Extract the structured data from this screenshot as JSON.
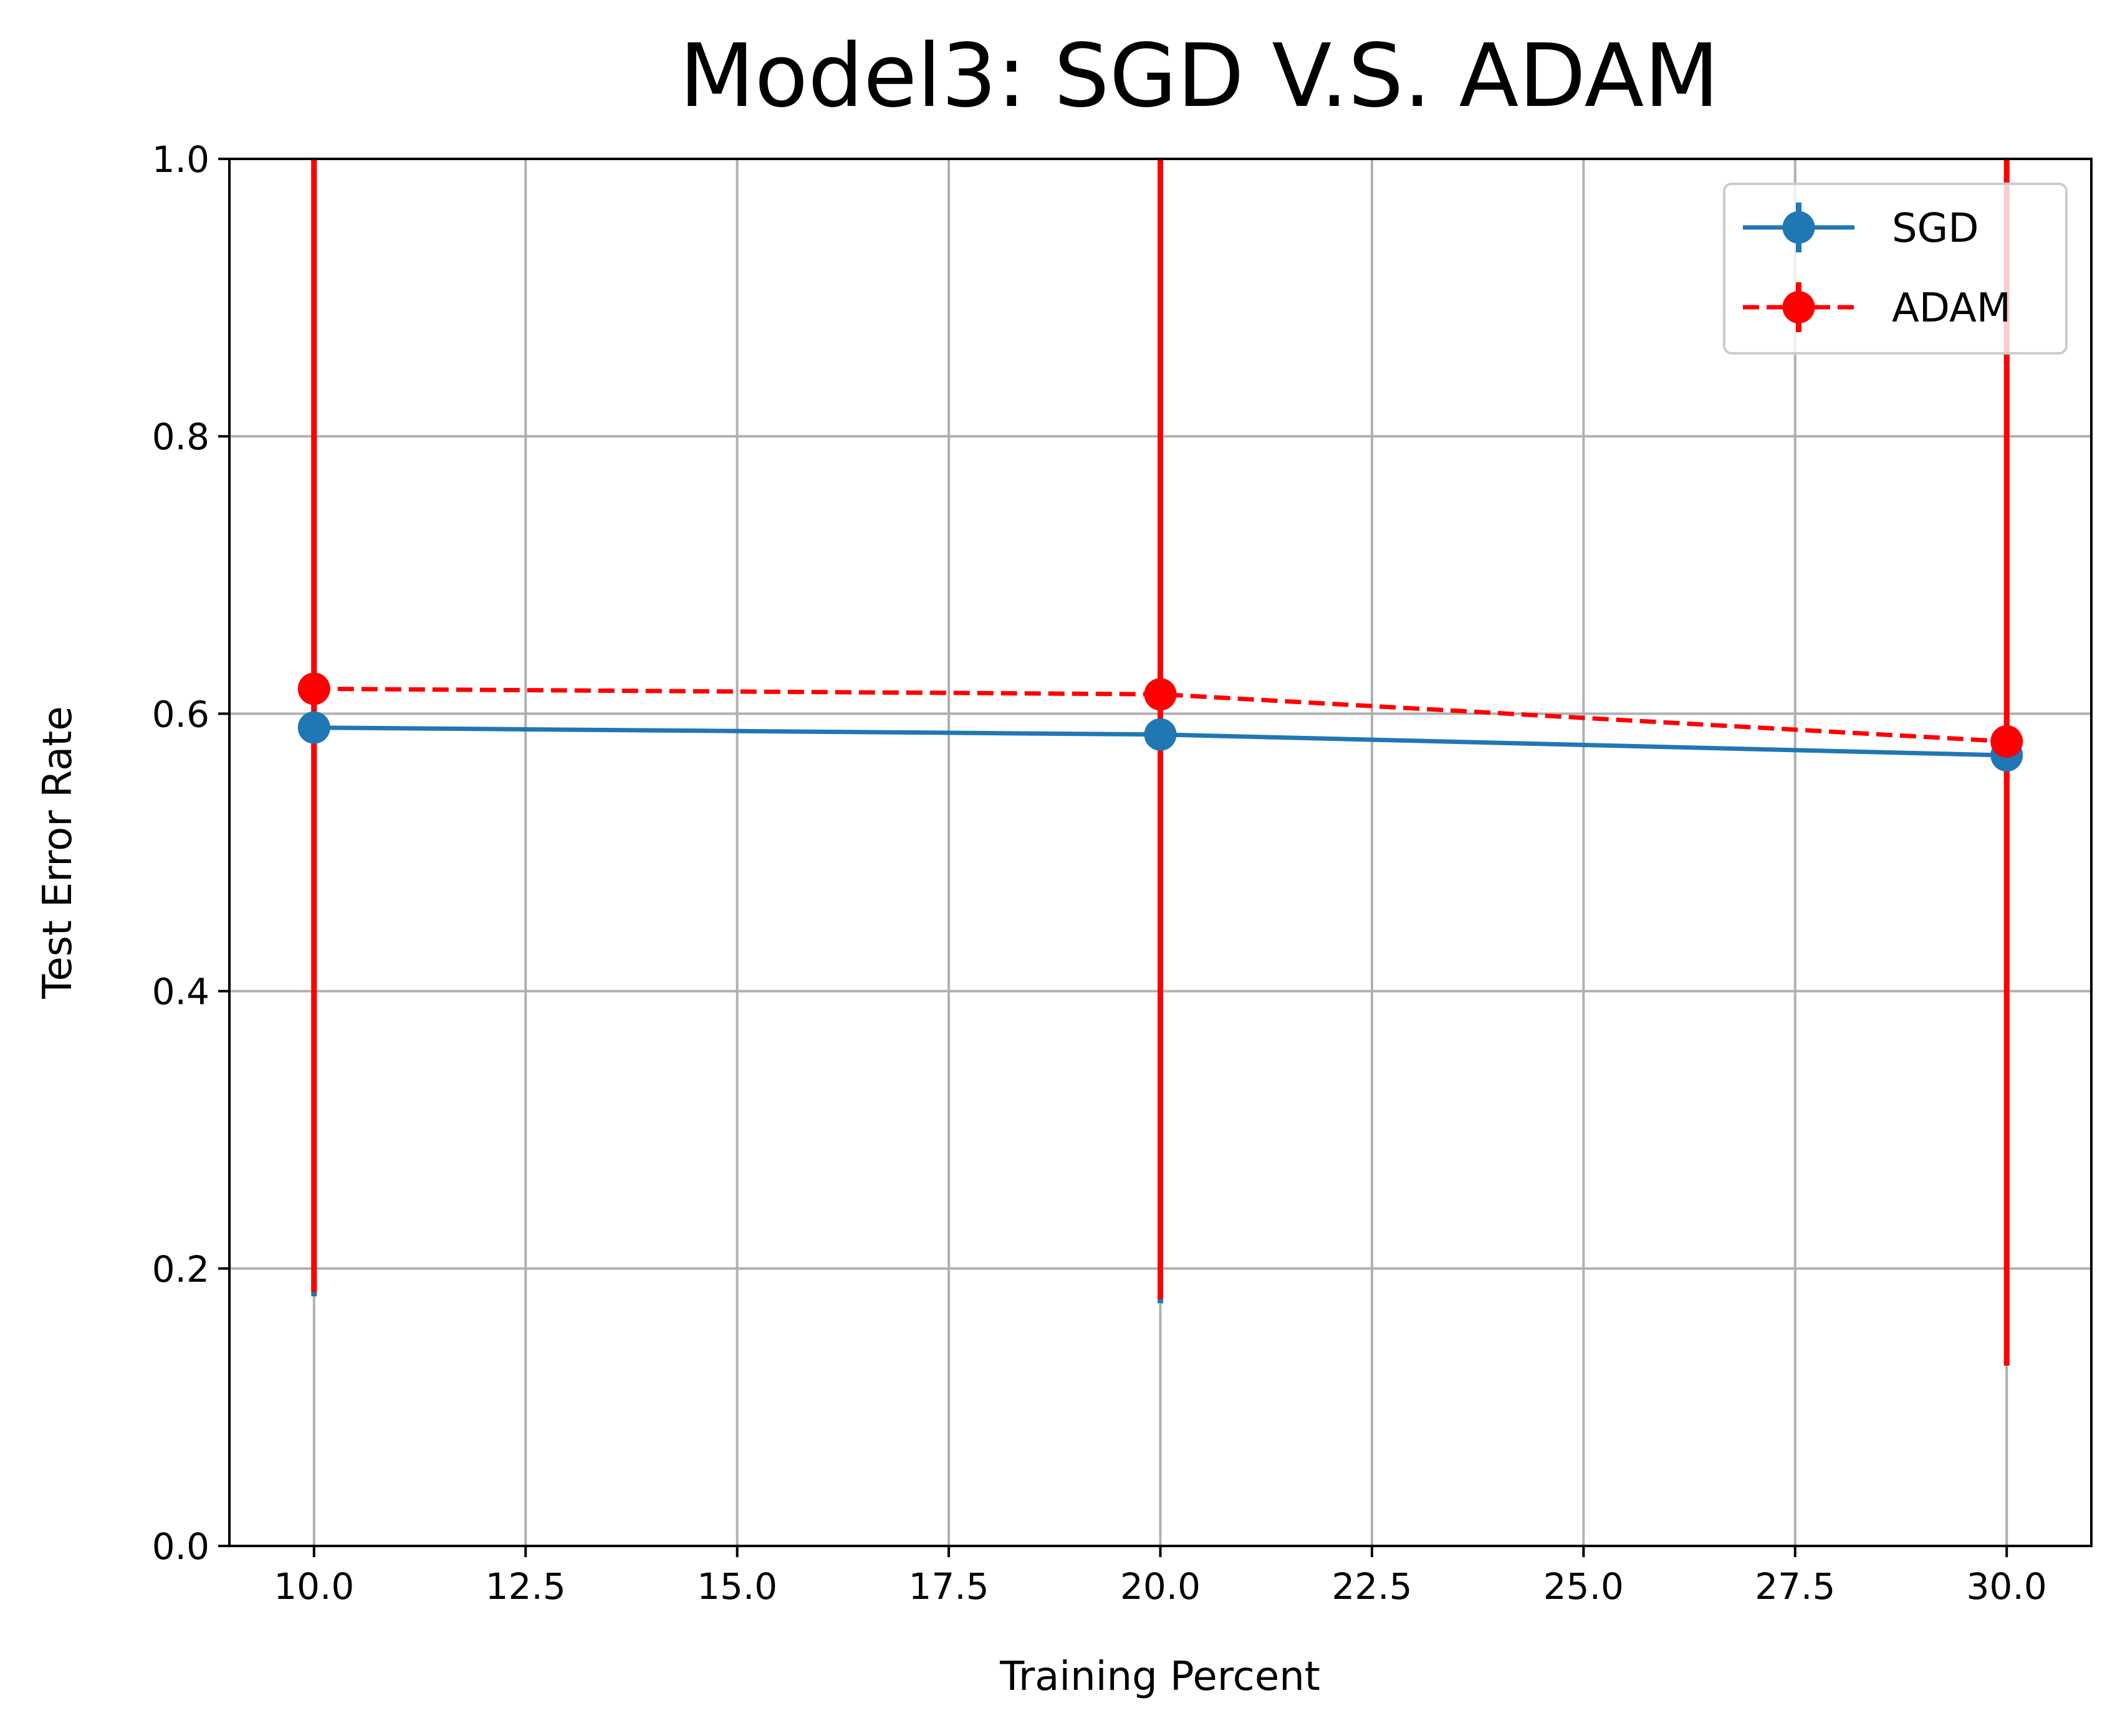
{
  "chart_data": {
    "type": "line",
    "title": "Model3: SGD V.S. ADAM",
    "xlabel": "Training Percent",
    "ylabel": "Test Error Rate",
    "xlim": [
      9,
      31
    ],
    "ylim": [
      0.0,
      1.0
    ],
    "xticks": [
      10.0,
      12.5,
      15.0,
      17.5,
      20.0,
      22.5,
      25.0,
      27.5,
      30.0
    ],
    "xtick_labels": [
      "10.0",
      "12.5",
      "15.0",
      "17.5",
      "20.0",
      "22.5",
      "25.0",
      "27.5",
      "30.0"
    ],
    "yticks": [
      0.0,
      0.2,
      0.4,
      0.6,
      0.8,
      1.0
    ],
    "ytick_labels": [
      "0.0",
      "0.2",
      "0.4",
      "0.6",
      "0.8",
      "1.0"
    ],
    "grid": true,
    "legend_position": "top-right",
    "x": [
      10,
      20,
      30
    ],
    "series": [
      {
        "name": "SGD",
        "values": [
          0.59,
          0.585,
          0.57
        ],
        "error_lower": [
          0.18,
          0.175,
          0.13
        ],
        "error_upper": [
          1.0,
          1.0,
          1.0
        ],
        "color": "#1f77b4",
        "line_style": "solid",
        "marker": "circle"
      },
      {
        "name": "ADAM",
        "values": [
          0.618,
          0.614,
          0.58
        ],
        "error_lower": [
          0.183,
          0.178,
          0.13
        ],
        "error_upper": [
          1.0,
          1.0,
          1.0
        ],
        "color": "#ff0000",
        "line_style": "dashed",
        "marker": "circle"
      }
    ]
  }
}
